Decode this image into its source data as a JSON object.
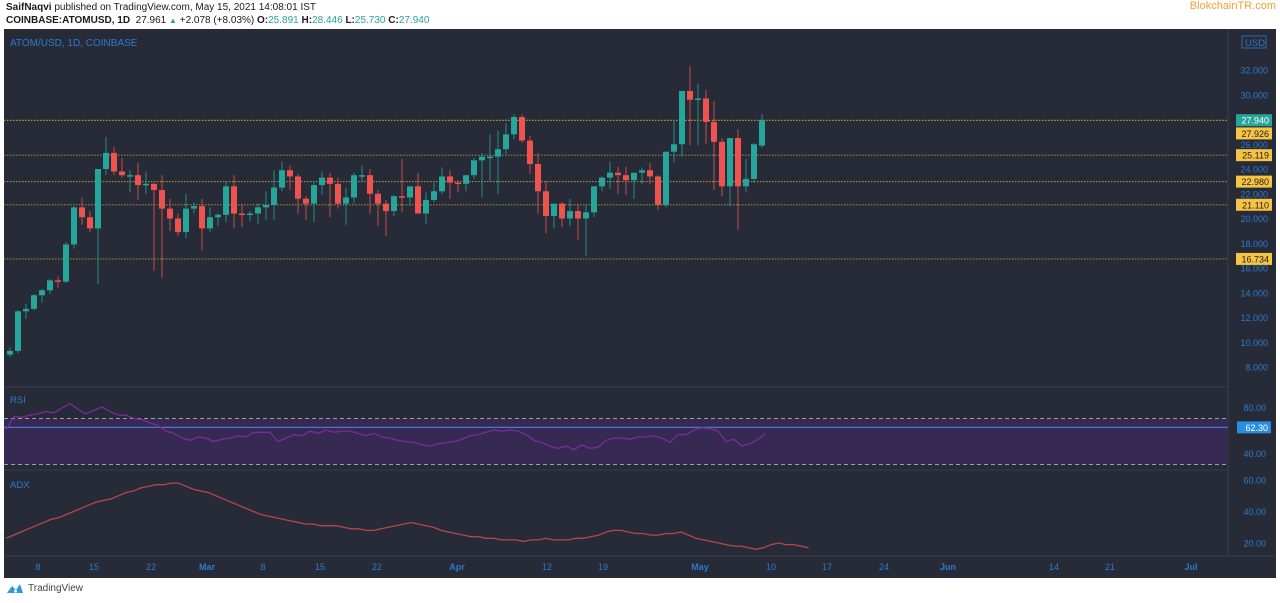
{
  "header": {
    "author": "SaifNaqvi",
    "published_text": "published on TradingView.com, May 15, 2021 14:08:01 IST",
    "symbol": "COINBASE:ATOMUSD, 1D",
    "last": "27.961",
    "change_arrow": "▲",
    "change": "+2.078 (+8.03%)",
    "o_label": "O:",
    "o": "25.891",
    "h_label": "H:",
    "h": "28.446",
    "l_label": "L:",
    "l": "25.730",
    "c_label": "C:",
    "c": "27.940"
  },
  "watermark": "BlokchainTR.com",
  "chart_title": "ATOM/USD, 1D, COINBASE",
  "currency": "USD",
  "footer": {
    "brand": "TradingView"
  },
  "colors": {
    "background": "#272b37",
    "up": "#26a69a",
    "down": "#ef5350",
    "axis_text": "#2a7bd0",
    "level_line": "#b8a33c",
    "level_label_bg": "#f6c343",
    "rsi_line": "#7b2a9a",
    "rsi_band": "#3a2a55",
    "rsi_ma": "#4a74d8",
    "adx_line": "#b4474b"
  },
  "chart_data": [
    {
      "type": "candlestick",
      "title": "ATOM/USD, 1D, COINBASE",
      "ylabel": "USD",
      "ylim": [
        7,
        33
      ],
      "y_ticks": [
        "32.000",
        "30.000",
        "28.000",
        "26.000",
        "24.000",
        "22.000",
        "20.000",
        "18.000",
        "16.000",
        "14.000",
        "12.000",
        "10.000",
        "8.000"
      ],
      "x_ticks": [
        "8",
        "15",
        "22",
        "Mar",
        "8",
        "15",
        "22",
        "Apr",
        "12",
        "19",
        "May",
        "10",
        "17",
        "24",
        "Jun",
        "14",
        "21",
        "Jul"
      ],
      "last_price_label": "27.940",
      "horizontal_levels": [
        27.926,
        25.119,
        22.98,
        21.11,
        16.734
      ],
      "level_labels": [
        "27.926",
        "25.119",
        "22.980",
        "21.110",
        "16.734"
      ],
      "candles_ohlc": [
        [
          9.0,
          9.6,
          8.8,
          9.3
        ],
        [
          9.3,
          12.6,
          9.1,
          12.5
        ],
        [
          12.5,
          13.1,
          11.9,
          12.7
        ],
        [
          12.7,
          13.9,
          12.6,
          13.8
        ],
        [
          13.8,
          14.3,
          13.2,
          14.2
        ],
        [
          14.2,
          15.1,
          13.9,
          15.0
        ],
        [
          15.0,
          15.3,
          14.4,
          14.9
        ],
        [
          14.9,
          18.1,
          14.8,
          17.9
        ],
        [
          17.9,
          21.0,
          17.6,
          20.9
        ],
        [
          20.9,
          21.7,
          19.5,
          20.1
        ],
        [
          20.1,
          20.6,
          18.9,
          19.2
        ],
        [
          19.2,
          24.0,
          14.7,
          24.0
        ],
        [
          24.0,
          26.6,
          23.5,
          25.3
        ],
        [
          25.3,
          25.8,
          23.5,
          23.8
        ],
        [
          23.8,
          24.9,
          23.3,
          23.5
        ],
        [
          23.5,
          23.9,
          22.1,
          23.5
        ],
        [
          23.5,
          24.5,
          21.5,
          22.7
        ],
        [
          22.7,
          23.8,
          22.0,
          22.8
        ],
        [
          22.8,
          22.9,
          15.8,
          22.3
        ],
        [
          22.3,
          23.5,
          15.2,
          20.8
        ],
        [
          20.8,
          21.6,
          19.0,
          20.0
        ],
        [
          20.0,
          20.4,
          18.6,
          18.9
        ],
        [
          18.9,
          22.0,
          18.4,
          20.8
        ],
        [
          20.8,
          21.3,
          20.4,
          21.0
        ],
        [
          21.0,
          21.6,
          17.4,
          19.2
        ],
        [
          19.2,
          20.9,
          18.9,
          20.1
        ],
        [
          20.1,
          20.4,
          19.4,
          20.3
        ],
        [
          20.3,
          23.0,
          19.7,
          22.6
        ],
        [
          22.6,
          23.5,
          19.2,
          20.4
        ],
        [
          20.4,
          21.2,
          19.3,
          20.3
        ],
        [
          20.3,
          20.6,
          19.8,
          20.4
        ],
        [
          20.4,
          21.2,
          19.6,
          20.9
        ],
        [
          20.9,
          22.2,
          19.9,
          21.1
        ],
        [
          21.1,
          23.9,
          19.9,
          22.5
        ],
        [
          22.5,
          24.6,
          22.2,
          23.9
        ],
        [
          23.9,
          24.3,
          22.3,
          23.4
        ],
        [
          23.4,
          23.6,
          20.4,
          21.6
        ],
        [
          21.6,
          21.8,
          19.9,
          21.2
        ],
        [
          21.2,
          22.9,
          19.7,
          22.7
        ],
        [
          22.7,
          23.8,
          21.9,
          23.3
        ],
        [
          23.3,
          23.7,
          20.1,
          22.8
        ],
        [
          22.8,
          23.3,
          20.8,
          21.2
        ],
        [
          21.2,
          22.5,
          19.5,
          21.7
        ],
        [
          21.7,
          23.7,
          21.2,
          23.5
        ],
        [
          23.5,
          24.3,
          22.9,
          23.5
        ],
        [
          23.5,
          24.0,
          20.4,
          22.0
        ],
        [
          22.0,
          22.3,
          19.4,
          21.2
        ],
        [
          21.2,
          21.5,
          18.6,
          20.6
        ],
        [
          20.6,
          21.9,
          20.2,
          21.8
        ],
        [
          21.8,
          24.8,
          20.5,
          21.7
        ],
        [
          21.7,
          22.5,
          21.0,
          22.6
        ],
        [
          22.6,
          23.7,
          21.0,
          20.4
        ],
        [
          20.4,
          22.1,
          19.6,
          21.5
        ],
        [
          21.5,
          22.9,
          21.3,
          22.2
        ],
        [
          22.2,
          24.1,
          22.0,
          23.4
        ],
        [
          23.4,
          23.9,
          21.6,
          22.9
        ],
        [
          22.9,
          23.1,
          22.1,
          22.8
        ],
        [
          22.8,
          23.4,
          22.2,
          23.5
        ],
        [
          23.5,
          24.9,
          23.2,
          24.7
        ],
        [
          24.7,
          25.3,
          21.7,
          25.0
        ],
        [
          25.0,
          26.8,
          23.0,
          25.0
        ],
        [
          25.0,
          27.1,
          22.0,
          25.6
        ],
        [
          25.6,
          27.7,
          25.2,
          26.8
        ],
        [
          26.8,
          28.4,
          26.4,
          28.2
        ],
        [
          28.2,
          28.4,
          26.1,
          26.3
        ],
        [
          26.3,
          26.7,
          23.6,
          24.4
        ],
        [
          24.4,
          25.3,
          20.4,
          22.2
        ],
        [
          22.2,
          23.0,
          18.8,
          20.2
        ],
        [
          20.2,
          20.7,
          19.2,
          21.2
        ],
        [
          21.2,
          21.3,
          19.3,
          20.0
        ],
        [
          20.0,
          21.6,
          19.4,
          20.6
        ],
        [
          20.6,
          21.2,
          18.3,
          20.0
        ],
        [
          20.0,
          21.1,
          17.0,
          20.5
        ],
        [
          20.5,
          22.3,
          20.1,
          22.6
        ],
        [
          22.6,
          23.4,
          22.2,
          23.3
        ],
        [
          23.3,
          24.6,
          22.4,
          23.7
        ],
        [
          23.7,
          24.2,
          22.0,
          23.5
        ],
        [
          23.5,
          24.2,
          21.9,
          23.1
        ],
        [
          23.1,
          23.7,
          21.6,
          23.7
        ],
        [
          23.7,
          24.1,
          22.8,
          23.9
        ],
        [
          23.9,
          24.5,
          22.8,
          23.4
        ],
        [
          23.4,
          23.5,
          20.7,
          21.1
        ],
        [
          21.1,
          24.8,
          20.9,
          25.4
        ],
        [
          25.4,
          28.0,
          24.5,
          26.0
        ],
        [
          26.0,
          30.3,
          25.0,
          30.3
        ],
        [
          30.3,
          32.3,
          25.9,
          29.6
        ],
        [
          29.6,
          30.9,
          25.9,
          29.7
        ],
        [
          29.7,
          30.4,
          26.0,
          27.8
        ],
        [
          27.8,
          29.5,
          22.3,
          26.2
        ],
        [
          26.2,
          26.5,
          21.8,
          22.6
        ],
        [
          22.6,
          25.0,
          21.0,
          26.5
        ],
        [
          26.5,
          27.2,
          19.1,
          22.6
        ],
        [
          22.6,
          24.8,
          22.1,
          23.2
        ],
        [
          23.2,
          26.1,
          22.9,
          26.0
        ],
        [
          25.891,
          28.446,
          25.73,
          27.94
        ]
      ]
    },
    {
      "type": "line",
      "title": "RSI",
      "ylim": [
        20,
        95
      ],
      "y_ticks": [
        "80.00",
        "40.00"
      ],
      "current_label": "62.30",
      "bands": {
        "upper": 70,
        "lower": 30
      },
      "ma_value": 62.3,
      "values": [
        60,
        72,
        71,
        73,
        74,
        76,
        75,
        79,
        83,
        78,
        74,
        77,
        80,
        76,
        73,
        73,
        70,
        69,
        66,
        64,
        59,
        57,
        53,
        51,
        54,
        53,
        50,
        52,
        53,
        55,
        54,
        58,
        58,
        58,
        50,
        53,
        56,
        55,
        59,
        57,
        60,
        58,
        59,
        59,
        57,
        55,
        57,
        54,
        53,
        51,
        50,
        49,
        47,
        46,
        48,
        49,
        50,
        52,
        55,
        56,
        58,
        60,
        59,
        60,
        59,
        56,
        51,
        49,
        46,
        44,
        46,
        43,
        47,
        44,
        45,
        51,
        53,
        53,
        52,
        54,
        54,
        55,
        53,
        49,
        56,
        56,
        60,
        62,
        61,
        59,
        50,
        52,
        46,
        48,
        52,
        57
      ]
    },
    {
      "type": "line",
      "title": "ADX",
      "ylim": [
        12,
        68
      ],
      "y_ticks": [
        "60.00",
        "40.00",
        "20.00"
      ],
      "values": [
        23,
        25,
        27,
        29,
        31,
        33,
        35,
        36,
        38,
        40,
        42,
        44,
        46,
        47,
        48,
        50,
        52,
        53,
        55,
        56,
        57,
        57,
        58,
        58,
        56,
        54,
        53,
        52,
        50,
        48,
        46,
        44,
        42,
        40,
        38,
        37,
        36,
        35,
        34,
        33,
        32,
        32,
        31,
        31,
        31,
        30,
        29,
        29,
        28,
        28,
        29,
        30,
        31,
        32,
        33,
        32,
        31,
        30,
        28,
        27,
        26,
        25,
        24,
        24,
        23,
        23,
        22,
        22,
        22,
        21,
        22,
        22,
        23,
        22,
        22,
        22,
        23,
        23,
        24,
        25,
        27,
        28,
        28,
        27,
        26,
        26,
        25,
        25,
        26,
        26,
        27,
        25,
        23,
        22,
        21,
        20,
        19,
        18,
        18,
        17,
        16,
        17,
        19,
        20,
        19,
        19,
        18,
        17
      ]
    }
  ]
}
